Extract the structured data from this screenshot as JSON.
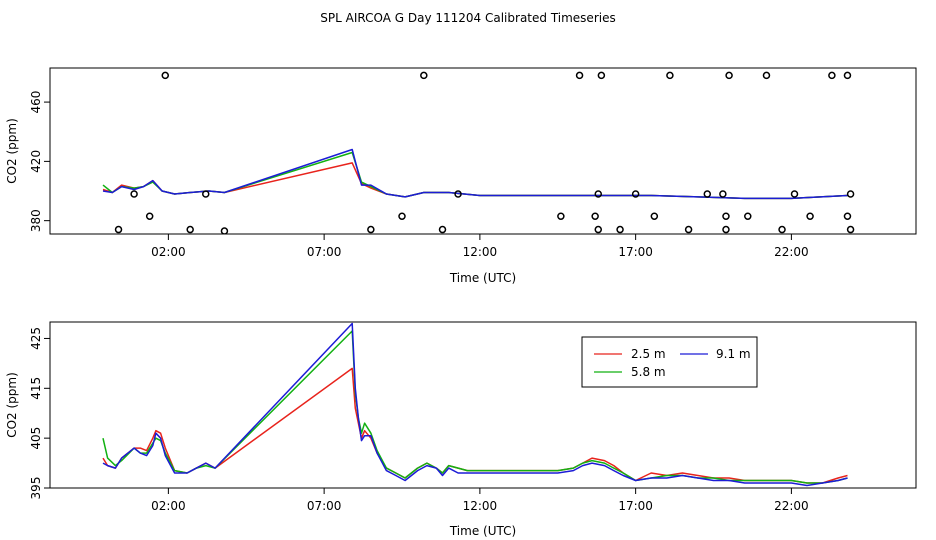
{
  "title": "SPL AIRCOA G  Day 111204  Calibrated Timeseries",
  "colors": {
    "2.5 m": "#e8231c",
    "5.8 m": "#12b112",
    "9.1 m": "#1c1cd6",
    "axis": "#000000"
  },
  "chart_data": [
    {
      "type": "line",
      "panel": "top",
      "xlabel": "Time (UTC)",
      "ylabel": "CO2 (ppm)",
      "xlim": [
        -1.8,
        26.0
      ],
      "ylim": [
        371,
        483
      ],
      "xticks": [
        2,
        7,
        12,
        17,
        22
      ],
      "xtick_labels": [
        "02:00",
        "07:00",
        "12:00",
        "17:00",
        "22:00"
      ],
      "yticks": [
        380,
        420,
        460
      ],
      "ytick_labels": [
        "380",
        "420",
        "460"
      ],
      "series": [
        {
          "name": "2.5 m",
          "color": "#e8231c",
          "x": [
            -0.1,
            0.2,
            0.5,
            0.9,
            1.2,
            1.5,
            1.8,
            2.2,
            2.7,
            3.3,
            3.8,
            7.9,
            8.2,
            8.5,
            9.0,
            9.6,
            10.2,
            11.0,
            12.0,
            14.0,
            15.5,
            16.5,
            17.5,
            19.0,
            20.5,
            22.0,
            23.8
          ],
          "y": [
            401,
            399,
            404,
            402,
            403,
            407,
            400,
            398,
            399,
            400,
            399,
            419,
            405,
            402,
            398,
            396,
            399,
            399,
            397,
            397,
            397,
            397,
            397,
            396,
            395,
            395,
            397
          ]
        },
        {
          "name": "5.8 m",
          "color": "#12b112",
          "x": [
            -0.1,
            0.2,
            0.5,
            0.9,
            1.2,
            1.5,
            1.8,
            2.2,
            2.7,
            3.3,
            3.8,
            7.9,
            8.2,
            8.5,
            9.0,
            9.6,
            10.2,
            11.0,
            12.0,
            14.0,
            15.5,
            16.5,
            17.5,
            19.0,
            20.5,
            22.0,
            23.8
          ],
          "y": [
            404,
            399,
            403,
            402,
            403,
            406,
            400,
            398,
            399,
            400,
            399,
            426,
            406,
            403,
            398,
            396,
            399,
            399,
            397,
            397,
            397,
            397,
            397,
            396,
            395,
            395,
            397
          ]
        },
        {
          "name": "9.1 m",
          "color": "#1c1cd6",
          "x": [
            -0.1,
            0.2,
            0.5,
            0.9,
            1.2,
            1.5,
            1.8,
            2.2,
            2.7,
            3.3,
            3.8,
            7.9,
            8.2,
            8.5,
            9.0,
            9.6,
            10.2,
            11.0,
            12.0,
            14.0,
            15.5,
            16.5,
            17.5,
            19.0,
            20.5,
            22.0,
            23.8
          ],
          "y": [
            400,
            399,
            403,
            401,
            403,
            407,
            400,
            398,
            399,
            400,
            399,
            428,
            404,
            404,
            398,
            396,
            399,
            399,
            397,
            397,
            397,
            397,
            397,
            396,
            395,
            395,
            397
          ]
        },
        {
          "name": "cal points",
          "type": "scatter",
          "color": "#000000",
          "x": [
            0.4,
            0.9,
            1.4,
            1.9,
            2.7,
            3.2,
            3.8,
            8.5,
            9.5,
            10.2,
            10.8,
            11.3,
            14.6,
            15.2,
            15.7,
            15.8,
            15.8,
            15.9,
            16.5,
            17.0,
            17.6,
            18.1,
            18.7,
            19.3,
            19.8,
            19.9,
            19.9,
            20.0,
            20.6,
            21.2,
            21.7,
            22.1,
            22.6,
            23.3,
            23.8,
            23.8,
            23.9,
            23.9
          ],
          "y": [
            374,
            398,
            383,
            478,
            374,
            398,
            373,
            374,
            383,
            478,
            374,
            398,
            383,
            478,
            383,
            374,
            398,
            478,
            374,
            398,
            383,
            478,
            374,
            398,
            398,
            374,
            383,
            478,
            383,
            478,
            374,
            398,
            383,
            478,
            478,
            383,
            374,
            398
          ]
        }
      ]
    },
    {
      "type": "line",
      "panel": "bottom",
      "xlabel": "Time (UTC)",
      "ylabel": "CO2 (ppm)",
      "xlim": [
        -1.8,
        26.0
      ],
      "ylim": [
        395,
        428.3
      ],
      "xticks": [
        2,
        7,
        12,
        17,
        22
      ],
      "xtick_labels": [
        "02:00",
        "07:00",
        "12:00",
        "17:00",
        "22:00"
      ],
      "yticks": [
        395,
        405,
        415,
        425
      ],
      "ytick_labels": [
        "395",
        "405",
        "415",
        "425"
      ],
      "legend": {
        "position": "top-right",
        "entries": [
          "2.5 m",
          "5.8 m",
          "9.1 m"
        ]
      },
      "series": [
        {
          "name": "2.5 m",
          "color": "#e8231c",
          "x": [
            -0.1,
            0.05,
            0.3,
            0.5,
            0.9,
            1.1,
            1.3,
            1.5,
            1.6,
            1.75,
            1.9,
            2.2,
            2.6,
            2.9,
            3.2,
            3.5,
            7.9,
            8.0,
            8.1,
            8.2,
            8.3,
            8.5,
            8.7,
            9.0,
            9.3,
            9.6,
            10.0,
            10.3,
            10.6,
            10.8,
            11.0,
            11.3,
            11.6,
            12.0,
            13.0,
            14.5,
            15.0,
            15.3,
            15.6,
            16.0,
            16.3,
            16.6,
            17.0,
            17.5,
            18.0,
            18.5,
            19.0,
            19.5,
            20.0,
            20.5,
            21.0,
            21.5,
            22.0,
            22.5,
            23.0,
            23.5,
            23.8
          ],
          "y": [
            401,
            399.5,
            399,
            401,
            403,
            403,
            402.5,
            405,
            406.5,
            406,
            403,
            398.5,
            398,
            399,
            400,
            399,
            419,
            411,
            408,
            405,
            406.5,
            405,
            402,
            399,
            398,
            397,
            399,
            400,
            399,
            398,
            399.5,
            399,
            398.5,
            398.5,
            398.5,
            398.5,
            399,
            400,
            401,
            400.5,
            399.5,
            398,
            396.5,
            398,
            397.5,
            398,
            397.5,
            397,
            397,
            396.5,
            396.5,
            396.5,
            396.5,
            396,
            396,
            397,
            397.5
          ]
        },
        {
          "name": "5.8 m",
          "color": "#12b112",
          "x": [
            -0.1,
            0.05,
            0.3,
            0.5,
            0.9,
            1.1,
            1.3,
            1.5,
            1.6,
            1.75,
            1.9,
            2.2,
            2.6,
            2.9,
            3.2,
            3.5,
            7.9,
            8.0,
            8.1,
            8.2,
            8.3,
            8.5,
            8.7,
            9.0,
            9.3,
            9.6,
            10.0,
            10.3,
            10.6,
            10.8,
            11.0,
            11.3,
            11.6,
            12.0,
            13.0,
            14.5,
            15.0,
            15.3,
            15.6,
            16.0,
            16.3,
            16.6,
            17.0,
            17.5,
            18.0,
            18.5,
            19.0,
            19.5,
            20.0,
            20.5,
            21.0,
            21.5,
            22.0,
            22.5,
            23.0,
            23.5,
            23.8
          ],
          "y": [
            405,
            401,
            399.5,
            400.5,
            403,
            402,
            402,
            404,
            405,
            404.5,
            402,
            398.5,
            398,
            399,
            399.5,
            399,
            426.5,
            414,
            409,
            406,
            408,
            406,
            402.5,
            399,
            398,
            397,
            399,
            400,
            399,
            398,
            399.5,
            399,
            398.5,
            398.5,
            398.5,
            398.5,
            399,
            400,
            400.5,
            400,
            399,
            398,
            396.5,
            397,
            397.5,
            397.5,
            397,
            397,
            396.5,
            396.5,
            396.5,
            396.5,
            396.5,
            396,
            396,
            396.5,
            397
          ]
        },
        {
          "name": "9.1 m",
          "color": "#1c1cd6",
          "x": [
            -0.1,
            0.05,
            0.3,
            0.5,
            0.9,
            1.1,
            1.3,
            1.5,
            1.6,
            1.75,
            1.9,
            2.2,
            2.6,
            2.9,
            3.2,
            3.5,
            7.9,
            8.0,
            8.1,
            8.2,
            8.3,
            8.5,
            8.7,
            9.0,
            9.3,
            9.6,
            10.0,
            10.3,
            10.6,
            10.8,
            11.0,
            11.3,
            11.6,
            12.0,
            13.0,
            14.5,
            15.0,
            15.3,
            15.6,
            16.0,
            16.3,
            16.6,
            17.0,
            17.5,
            18.0,
            18.5,
            19.0,
            19.5,
            20.0,
            20.5,
            21.0,
            21.5,
            22.0,
            22.5,
            23.0,
            23.5,
            23.8
          ],
          "y": [
            400,
            399.5,
            399,
            401,
            403,
            402,
            401.5,
            403.5,
            406,
            405,
            401.5,
            398,
            398,
            399,
            400,
            399,
            428,
            415,
            409,
            404.5,
            405.5,
            405.5,
            402,
            398.5,
            397.5,
            396.5,
            398.5,
            399.5,
            399,
            397.5,
            399,
            398,
            398,
            398,
            398,
            398,
            398.5,
            399.5,
            400,
            399.5,
            398.5,
            397.5,
            396.5,
            397,
            397,
            397.5,
            397,
            396.5,
            396.5,
            396,
            396,
            396,
            396,
            395.5,
            396,
            396.5,
            397
          ]
        }
      ]
    }
  ]
}
